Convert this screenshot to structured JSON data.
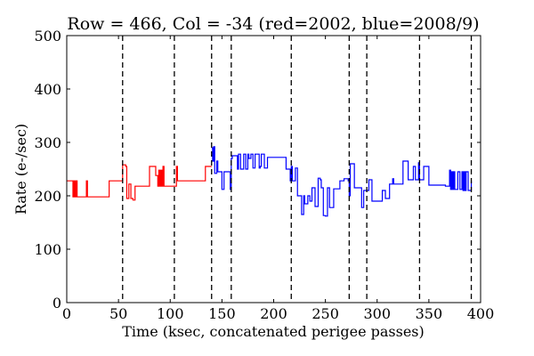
{
  "chart_data": {
    "type": "line",
    "title": "Row = 466, Col = -34 (red=2002, blue=2008/9)",
    "xlabel": "Time (ksec, concatenated perigee passes)",
    "ylabel": "Rate (e-/sec)",
    "xlim": [
      0,
      400
    ],
    "ylim": [
      0,
      500
    ],
    "xticks": [
      0,
      50,
      100,
      150,
      200,
      250,
      300,
      350,
      400
    ],
    "yticks": [
      0,
      100,
      200,
      300,
      400,
      500
    ],
    "grid": false,
    "legend": "none",
    "vlines": [
      54,
      104,
      140,
      159,
      217,
      273,
      290,
      341,
      391
    ],
    "series": [
      {
        "color": "#ff0000",
        "step": true,
        "x": [
          0,
          5,
          6,
          7,
          8,
          9,
          10,
          11,
          19,
          20,
          21,
          41,
          54,
          57,
          58,
          60,
          62,
          64,
          66,
          80,
          86,
          88,
          89,
          90,
          91,
          92,
          93,
          94,
          106,
          107,
          108,
          126,
          134,
          136,
          140
        ],
        "y": [
          228,
          228,
          198,
          228,
          198,
          228,
          198,
          198,
          228,
          198,
          198,
          228,
          258,
          255,
          195,
          222,
          195,
          192,
          218,
          255,
          238,
          218,
          248,
          218,
          248,
          218,
          255,
          218,
          255,
          228,
          228,
          228,
          255,
          255,
          255
        ]
      },
      {
        "color": "#0000ff",
        "step": true,
        "x": [
          140,
          141,
          142,
          143,
          145,
          146,
          148,
          150,
          152,
          156,
          158,
          159,
          160,
          162,
          165,
          166,
          168,
          169,
          171,
          173,
          175,
          176,
          178,
          180,
          182,
          184,
          186,
          187,
          188,
          191,
          194,
          210,
          212,
          216,
          217,
          218,
          219,
          221,
          223,
          224,
          227,
          229,
          230,
          233,
          235,
          237,
          240,
          243,
          245,
          246,
          248,
          250,
          252,
          254,
          258,
          260,
          264,
          268,
          272,
          273,
          274,
          275,
          278,
          282,
          285,
          287,
          290,
          292,
          295,
          300,
          305,
          308,
          312,
          315,
          316,
          320,
          325,
          330,
          335,
          337,
          340,
          341,
          345,
          350,
          365,
          366,
          370,
          371,
          372,
          373,
          374,
          375,
          378,
          380,
          382,
          383,
          384,
          385,
          386,
          388,
          390,
          391
        ],
        "y": [
          290,
          265,
          292,
          242,
          265,
          245,
          245,
          212,
          245,
          245,
          212,
          270,
          275,
          275,
          250,
          278,
          250,
          250,
          278,
          250,
          278,
          270,
          278,
          252,
          278,
          278,
          252,
          255,
          278,
          252,
          272,
          272,
          250,
          228,
          255,
          228,
          228,
          252,
          200,
          200,
          165,
          200,
          185,
          200,
          190,
          215,
          180,
          233,
          230,
          215,
          163,
          162,
          215,
          178,
          213,
          213,
          228,
          232,
          228,
          200,
          260,
          260,
          215,
          215,
          178,
          210,
          210,
          230,
          190,
          190,
          210,
          195,
          222,
          232,
          222,
          222,
          265,
          230,
          255,
          230,
          262,
          230,
          255,
          220,
          220,
          218,
          248,
          212,
          245,
          212,
          245,
          212,
          245,
          212,
          245,
          210,
          245,
          210,
          245,
          210,
          210,
          228
        ]
      }
    ]
  }
}
